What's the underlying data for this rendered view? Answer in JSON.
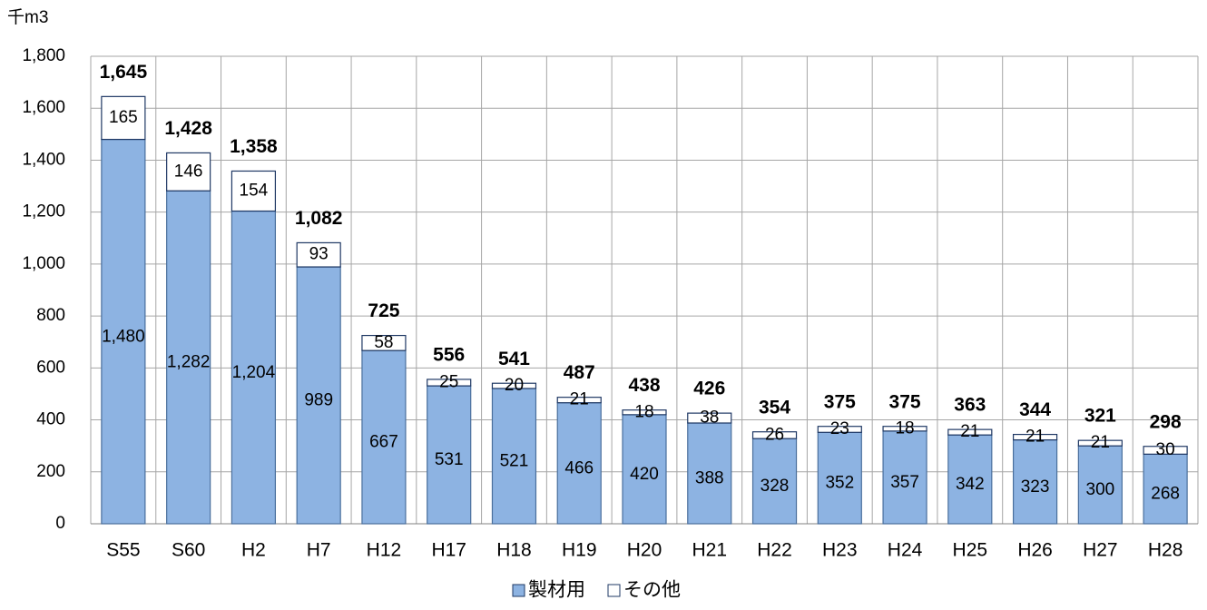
{
  "chart_data": {
    "type": "stacked_bar",
    "y_label": "千m3",
    "categories": [
      "S55",
      "S60",
      "H2",
      "H7",
      "H12",
      "H17",
      "H18",
      "H19",
      "H20",
      "H21",
      "H22",
      "H23",
      "H24",
      "H25",
      "H26",
      "H27",
      "H28"
    ],
    "series": [
      {
        "name": "製材用",
        "color": "#8db3e2",
        "values": [
          1480,
          1282,
          1204,
          989,
          667,
          531,
          521,
          466,
          420,
          388,
          328,
          352,
          357,
          342,
          323,
          300,
          268
        ],
        "value_labels": [
          "1,480",
          "1,282",
          "1,204",
          "989",
          "667",
          "531",
          "521",
          "466",
          "420",
          "388",
          "328",
          "352",
          "357",
          "342",
          "323",
          "300",
          "268"
        ]
      },
      {
        "name": "その他",
        "color": "#ffffff",
        "values": [
          165,
          146,
          154,
          93,
          58,
          25,
          20,
          21,
          18,
          38,
          26,
          23,
          18,
          21,
          21,
          21,
          30
        ]
      }
    ],
    "totals": [
      1645,
      1428,
      1358,
      1082,
      725,
      556,
      541,
      487,
      438,
      426,
      354,
      375,
      375,
      363,
      344,
      321,
      298
    ],
    "total_labels": [
      "1,645",
      "1,428",
      "1,358",
      "1,082",
      "725",
      "556",
      "541",
      "487",
      "438",
      "426",
      "354",
      "375",
      "375",
      "363",
      "344",
      "321",
      "298"
    ],
    "ylim": [
      0,
      1800
    ],
    "yticks": [
      0,
      200,
      400,
      600,
      800,
      {
        "value": 1000,
        "label": "1,000"
      },
      {
        "value": 1200,
        "label": "1,200"
      },
      {
        "value": 1400,
        "label": "1,400"
      },
      {
        "value": 1600,
        "label": "1,600"
      },
      {
        "value": 1800,
        "label": "1,800"
      }
    ],
    "grid": true,
    "legend": "bottom"
  }
}
